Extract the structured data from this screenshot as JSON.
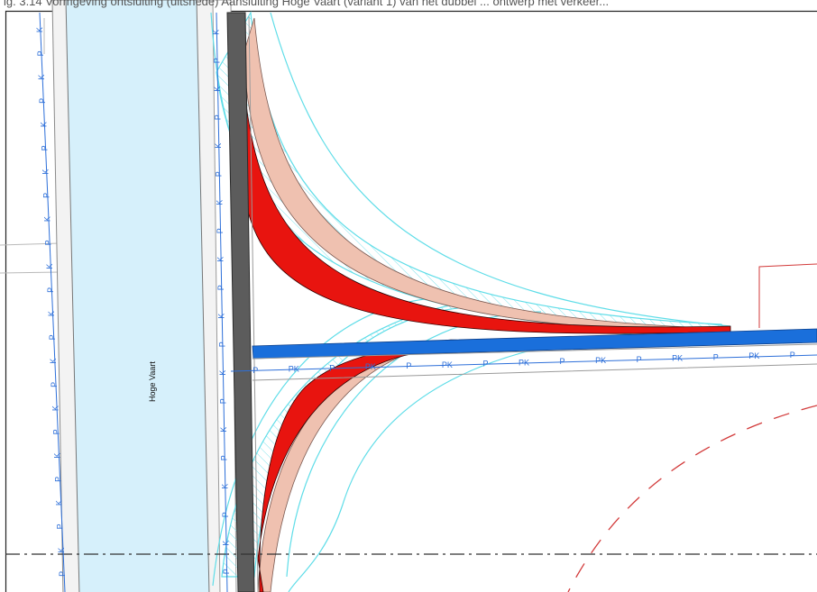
{
  "caption": "ig. 3.14 Vormgeving ontsluiting (uitsnede) Aansluiting Hoge Vaart (variant 1) van het dubbel ... ontwerp met verkeer...",
  "water_label": "Hoge Vaart",
  "cable_markers": {
    "horizontal": [
      "P",
      "PK",
      "P",
      "PK",
      "P",
      "PK",
      "P",
      "PK",
      "P",
      "PK",
      "P",
      "PK",
      "P",
      "PK",
      "P"
    ],
    "vertical_left": [
      "K",
      "P",
      "K",
      "P",
      "K",
      "P",
      "K",
      "P",
      "K",
      "P",
      "K",
      "P",
      "K",
      "P",
      "K",
      "P",
      "K",
      "P",
      "K",
      "P",
      "K",
      "P",
      "K",
      "P"
    ],
    "vertical_right": [
      "K",
      "P",
      "K",
      "P",
      "K",
      "P",
      "K",
      "P",
      "K",
      "P",
      "K",
      "P",
      "K",
      "P",
      "K",
      "P",
      "K",
      "P",
      "K",
      "P"
    ]
  },
  "colors": {
    "water": "#d6f0fb",
    "road_dark": "#5c5c5c",
    "cycle_path": "#1a6fdb",
    "red_lane": "#e8140f",
    "salmon_verge": "#efc1b0",
    "cyan_hatch": "#5fdde8",
    "cable_blue": "#2d6fd9",
    "red_dashed": "#d23a3a",
    "dash_dot": "#333333"
  }
}
